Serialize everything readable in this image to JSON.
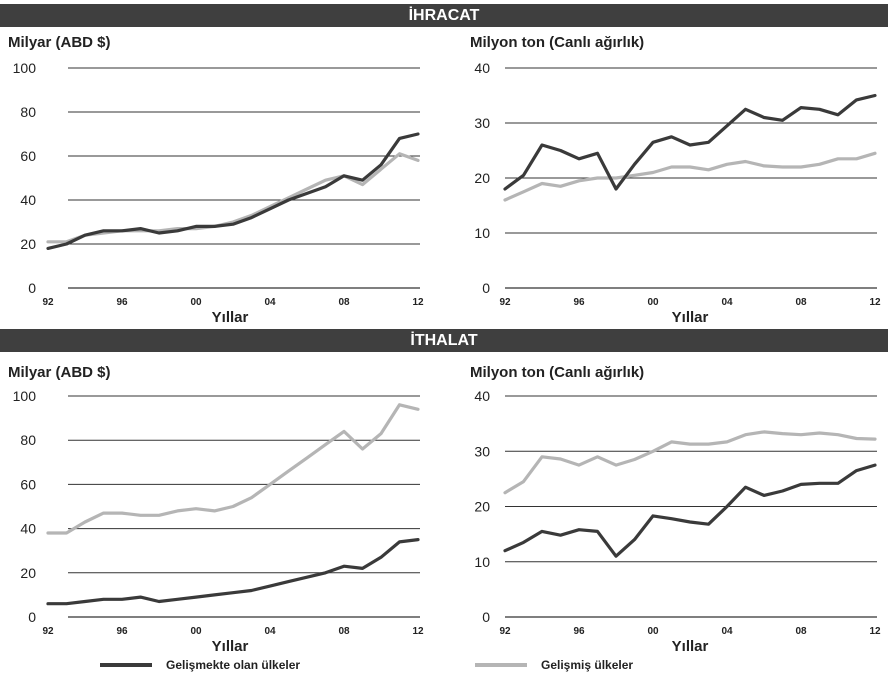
{
  "colors": {
    "developing": "#3a3a3a",
    "developed": "#b5b5b5",
    "banner_bg": "#3f3f3f",
    "grid": "#333333"
  },
  "sections": {
    "top": "İHRACAT",
    "bottom": "İTHALAT"
  },
  "legend": {
    "developing": "Gelişmekte olan ülkeler",
    "developed": "Gelişmiş ülkeler"
  },
  "chart_data": [
    {
      "type": "line",
      "section": "İHRACAT",
      "ylabel": "Milyar (ABD $)",
      "xlabel": "Yıllar",
      "ylim": [
        0,
        100
      ],
      "yticks": [
        0,
        20,
        40,
        60,
        80,
        100
      ],
      "xticks": [
        "92",
        "96",
        "00",
        "04",
        "08",
        "12"
      ],
      "x": [
        1992,
        1993,
        1994,
        1995,
        1996,
        1997,
        1998,
        1999,
        2000,
        2001,
        2002,
        2003,
        2004,
        2005,
        2006,
        2007,
        2008,
        2009,
        2010,
        2011,
        2012
      ],
      "series": [
        {
          "name": "Gelişmekte olan ülkeler",
          "values": [
            18,
            20,
            24,
            26,
            26,
            27,
            25,
            26,
            28,
            28,
            29,
            32,
            36,
            40,
            43,
            46,
            51,
            49,
            56,
            68,
            70
          ]
        },
        {
          "name": "Gelişmiş ülkeler",
          "values": [
            21,
            21,
            24,
            25,
            26,
            26,
            26,
            27,
            27,
            28,
            30,
            33,
            37,
            41,
            45,
            49,
            51,
            47,
            54,
            61,
            58
          ]
        }
      ]
    },
    {
      "type": "line",
      "section": "İHRACAT",
      "ylabel": "Milyon ton (Canlı ağırlık)",
      "xlabel": "Yıllar",
      "ylim": [
        0,
        40
      ],
      "yticks": [
        0,
        10,
        20,
        30,
        40
      ],
      "xticks": [
        "92",
        "96",
        "00",
        "04",
        "08",
        "12"
      ],
      "x": [
        1992,
        1993,
        1994,
        1995,
        1996,
        1997,
        1998,
        1999,
        2000,
        2001,
        2002,
        2003,
        2004,
        2005,
        2006,
        2007,
        2008,
        2009,
        2010,
        2011,
        2012
      ],
      "series": [
        {
          "name": "Gelişmekte olan ülkeler",
          "values": [
            18,
            20.5,
            26,
            25,
            23.5,
            24.5,
            18,
            22.5,
            26.5,
            27.5,
            26,
            26.5,
            29.5,
            32.5,
            31,
            30.5,
            32.8,
            32.5,
            31.5,
            34.2,
            35
          ]
        },
        {
          "name": "Gelişmiş ülkeler",
          "values": [
            16,
            17.5,
            19,
            18.5,
            19.5,
            20,
            20,
            20.5,
            21,
            22,
            22,
            21.5,
            22.5,
            23,
            22.2,
            22,
            22,
            22.5,
            23.5,
            23.5,
            24.5
          ]
        }
      ]
    },
    {
      "type": "line",
      "section": "İTHALAT",
      "ylabel": "Milyar (ABD $)",
      "xlabel": "Yıllar",
      "ylim": [
        0,
        100
      ],
      "yticks": [
        0,
        20,
        40,
        60,
        80,
        100
      ],
      "xticks": [
        "92",
        "96",
        "00",
        "04",
        "08",
        "12"
      ],
      "x": [
        1992,
        1993,
        1994,
        1995,
        1996,
        1997,
        1998,
        1999,
        2000,
        2001,
        2002,
        2003,
        2004,
        2005,
        2006,
        2007,
        2008,
        2009,
        2010,
        2011,
        2012
      ],
      "series": [
        {
          "name": "Gelişmekte olan ülkeler",
          "values": [
            6,
            6,
            7,
            8,
            8,
            9,
            7,
            8,
            9,
            10,
            11,
            12,
            14,
            16,
            18,
            20,
            23,
            22,
            27,
            34,
            35
          ]
        },
        {
          "name": "Gelişmiş ülkeler",
          "values": [
            38,
            38,
            43,
            47,
            47,
            46,
            46,
            48,
            49,
            48,
            50,
            54,
            60,
            66,
            72,
            78,
            84,
            76,
            83,
            96,
            94
          ]
        }
      ]
    },
    {
      "type": "line",
      "section": "İTHALAT",
      "ylabel": "Milyon ton (Canlı ağırlık)",
      "xlabel": "Yıllar",
      "ylim": [
        0,
        40
      ],
      "yticks": [
        0,
        10,
        20,
        30,
        40
      ],
      "xticks": [
        "92",
        "96",
        "00",
        "04",
        "08",
        "12"
      ],
      "x": [
        1992,
        1993,
        1994,
        1995,
        1996,
        1997,
        1998,
        1999,
        2000,
        2001,
        2002,
        2003,
        2004,
        2005,
        2006,
        2007,
        2008,
        2009,
        2010,
        2011,
        2012
      ],
      "series": [
        {
          "name": "Gelişmekte olan ülkeler",
          "values": [
            12,
            13.5,
            15.5,
            14.8,
            15.8,
            15.5,
            11,
            14,
            18.3,
            17.8,
            17.2,
            16.8,
            20,
            23.5,
            22,
            22.8,
            24,
            24.2,
            24.2,
            26.5,
            27.5
          ]
        },
        {
          "name": "Gelişmiş ülkeler",
          "values": [
            22.5,
            24.5,
            29,
            28.6,
            27.5,
            29,
            27.5,
            28.5,
            30,
            31.7,
            31.3,
            31.3,
            31.7,
            33,
            33.5,
            33.2,
            33,
            33.3,
            33,
            32.3,
            32.2
          ]
        }
      ]
    }
  ]
}
